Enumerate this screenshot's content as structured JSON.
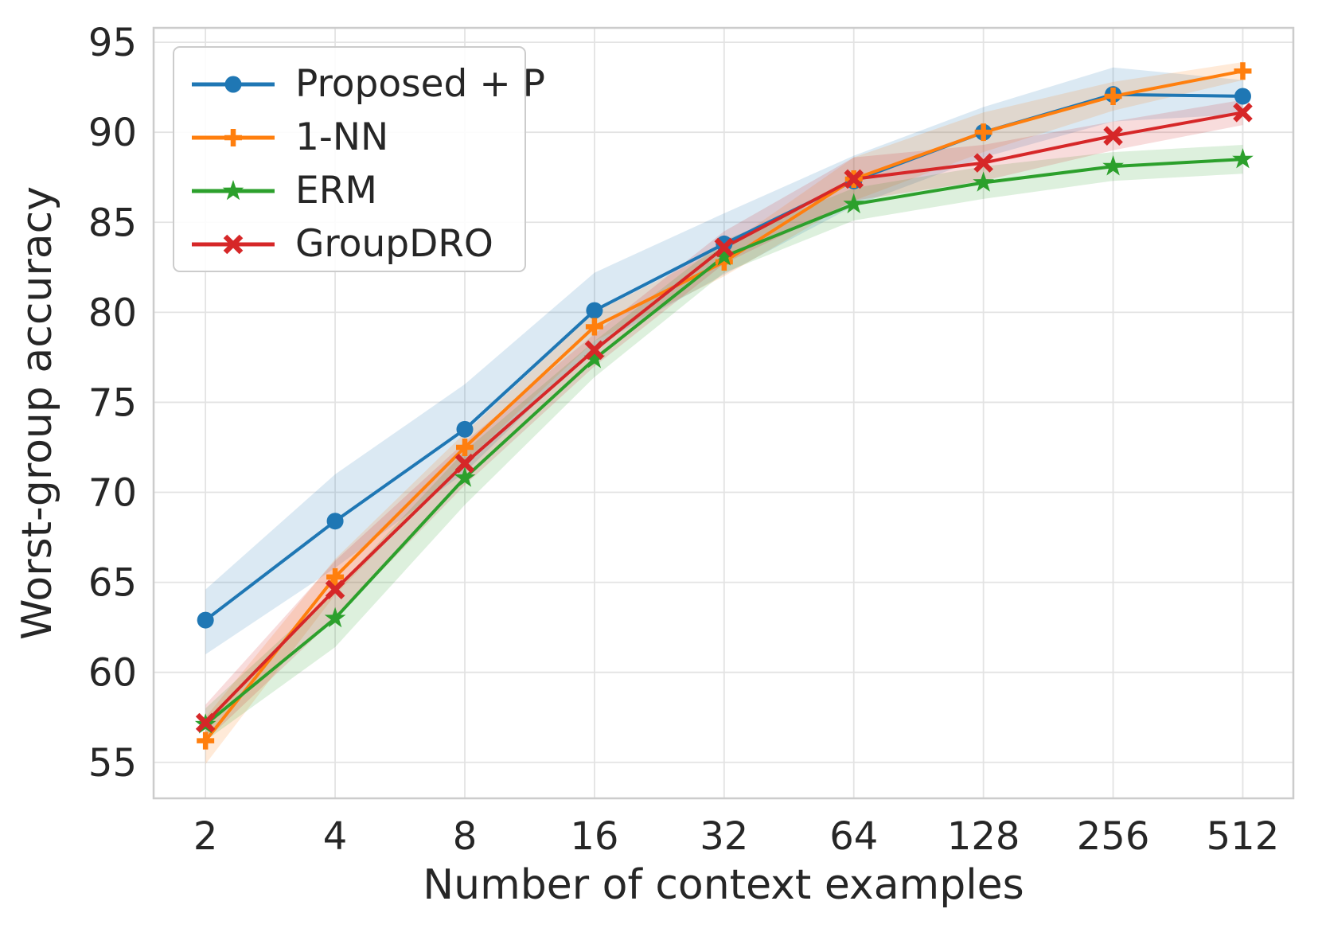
{
  "chart_data": {
    "type": "line",
    "title": "",
    "xlabel": "Number of context examples",
    "ylabel": "Worst-group accuracy",
    "x_scale": "log2",
    "categories": [
      2,
      4,
      8,
      16,
      32,
      64,
      128,
      256,
      512
    ],
    "x_ticklabels": [
      "2",
      "4",
      "8",
      "16",
      "32",
      "64",
      "128",
      "256",
      "512"
    ],
    "y_ticks": [
      55,
      60,
      65,
      70,
      75,
      80,
      85,
      90,
      95
    ],
    "ylim": [
      53.0,
      95.8
    ],
    "xlim_log2": [
      0.6,
      9.39
    ],
    "grid": true,
    "legend_position": "upper left",
    "series": [
      {
        "name": "Proposed + P",
        "color": "#1f77b4",
        "marker": "circle",
        "values": [
          62.9,
          68.4,
          73.5,
          80.1,
          83.8,
          87.3,
          90.0,
          92.1,
          92.0
        ],
        "band_lower": [
          61.0,
          65.8,
          71.1,
          78.1,
          82.1,
          85.9,
          88.6,
          90.6,
          91.0
        ],
        "band_upper": [
          64.6,
          71.0,
          76.0,
          82.2,
          85.5,
          88.7,
          91.4,
          93.6,
          92.9
        ]
      },
      {
        "name": "1-NN",
        "color": "#ff7f0e",
        "marker": "plus",
        "values": [
          56.2,
          65.3,
          72.5,
          79.2,
          82.8,
          87.4,
          90.0,
          92.0,
          93.4
        ],
        "band_lower": [
          54.9,
          64.3,
          71.7,
          78.4,
          82.0,
          86.2,
          88.9,
          91.2,
          92.9
        ],
        "band_upper": [
          57.5,
          66.3,
          73.3,
          80.0,
          83.6,
          88.6,
          91.1,
          92.8,
          93.9
        ]
      },
      {
        "name": "ERM",
        "color": "#2ca02c",
        "marker": "star",
        "values": [
          57.1,
          63.0,
          70.8,
          77.4,
          83.1,
          86.0,
          87.2,
          88.1,
          88.5
        ],
        "band_lower": [
          56.2,
          61.4,
          69.3,
          76.4,
          82.2,
          85.1,
          86.3,
          87.3,
          87.7
        ],
        "band_upper": [
          58.0,
          64.6,
          72.3,
          78.4,
          84.0,
          86.9,
          88.1,
          88.9,
          89.3
        ]
      },
      {
        "name": "GroupDRO",
        "color": "#d62728",
        "marker": "x",
        "values": [
          57.2,
          64.6,
          71.6,
          77.9,
          83.6,
          87.4,
          88.3,
          89.8,
          91.1
        ],
        "band_lower": [
          56.2,
          63.0,
          70.4,
          77.0,
          82.7,
          86.2,
          87.3,
          89.0,
          90.4
        ],
        "band_upper": [
          58.2,
          66.2,
          72.8,
          78.8,
          84.5,
          88.6,
          89.3,
          90.6,
          91.8
        ]
      }
    ]
  }
}
